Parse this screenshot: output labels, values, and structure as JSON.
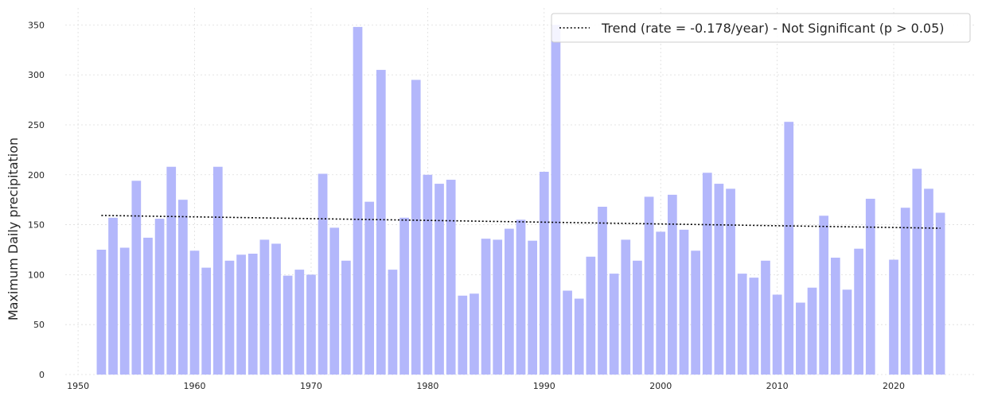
{
  "chart_data": {
    "type": "bar",
    "title": "",
    "xlabel": "",
    "ylabel": "Maximum Daily precipitation",
    "xlim": [
      1948.9,
      2027.1
    ],
    "ylim": [
      0,
      367
    ],
    "x_ticks": [
      1950,
      1960,
      1970,
      1980,
      1990,
      2000,
      2010,
      2020
    ],
    "y_ticks": [
      0,
      50,
      100,
      150,
      200,
      250,
      300,
      350
    ],
    "grid": true,
    "legend_position": "top-right",
    "colors": {
      "bars": "#b3b7fb",
      "trend": "#000000",
      "grid": "#dddddd",
      "legend_border": "#cccccc"
    },
    "series": [
      {
        "name": "",
        "x": [
          1952,
          1953,
          1954,
          1955,
          1956,
          1957,
          1958,
          1959,
          1960,
          1961,
          1962,
          1963,
          1964,
          1965,
          1966,
          1967,
          1968,
          1969,
          1970,
          1971,
          1972,
          1973,
          1974,
          1975,
          1976,
          1977,
          1978,
          1979,
          1980,
          1981,
          1982,
          1983,
          1984,
          1985,
          1986,
          1987,
          1988,
          1989,
          1990,
          1991,
          1992,
          1993,
          1994,
          1995,
          1996,
          1997,
          1998,
          1999,
          2000,
          2001,
          2002,
          2003,
          2004,
          2005,
          2006,
          2007,
          2008,
          2009,
          2010,
          2011,
          2012,
          2013,
          2014,
          2015,
          2016,
          2017,
          2018,
          2020,
          2021,
          2022,
          2023,
          2024
        ],
        "values": [
          125,
          157,
          127,
          194,
          137,
          156,
          208,
          175,
          124,
          107,
          208,
          114,
          120,
          121,
          135,
          131,
          99,
          105,
          100,
          201,
          147,
          114,
          348,
          173,
          305,
          105,
          157,
          295,
          200,
          191,
          195,
          79,
          81,
          136,
          135,
          146,
          155,
          134,
          203,
          350,
          84,
          76,
          118,
          168,
          101,
          135,
          114,
          178,
          143,
          180,
          145,
          124,
          202,
          191,
          186,
          101,
          97,
          114,
          80,
          253,
          72,
          87,
          159,
          117,
          85,
          126,
          176,
          115,
          167,
          206,
          186,
          162
        ]
      }
    ],
    "trend": {
      "label": "Trend (rate = -0.178/year) - Not Significant (p > 0.05)",
      "x": [
        1952,
        2024
      ],
      "y": [
        159.3,
        146.5
      ]
    }
  }
}
